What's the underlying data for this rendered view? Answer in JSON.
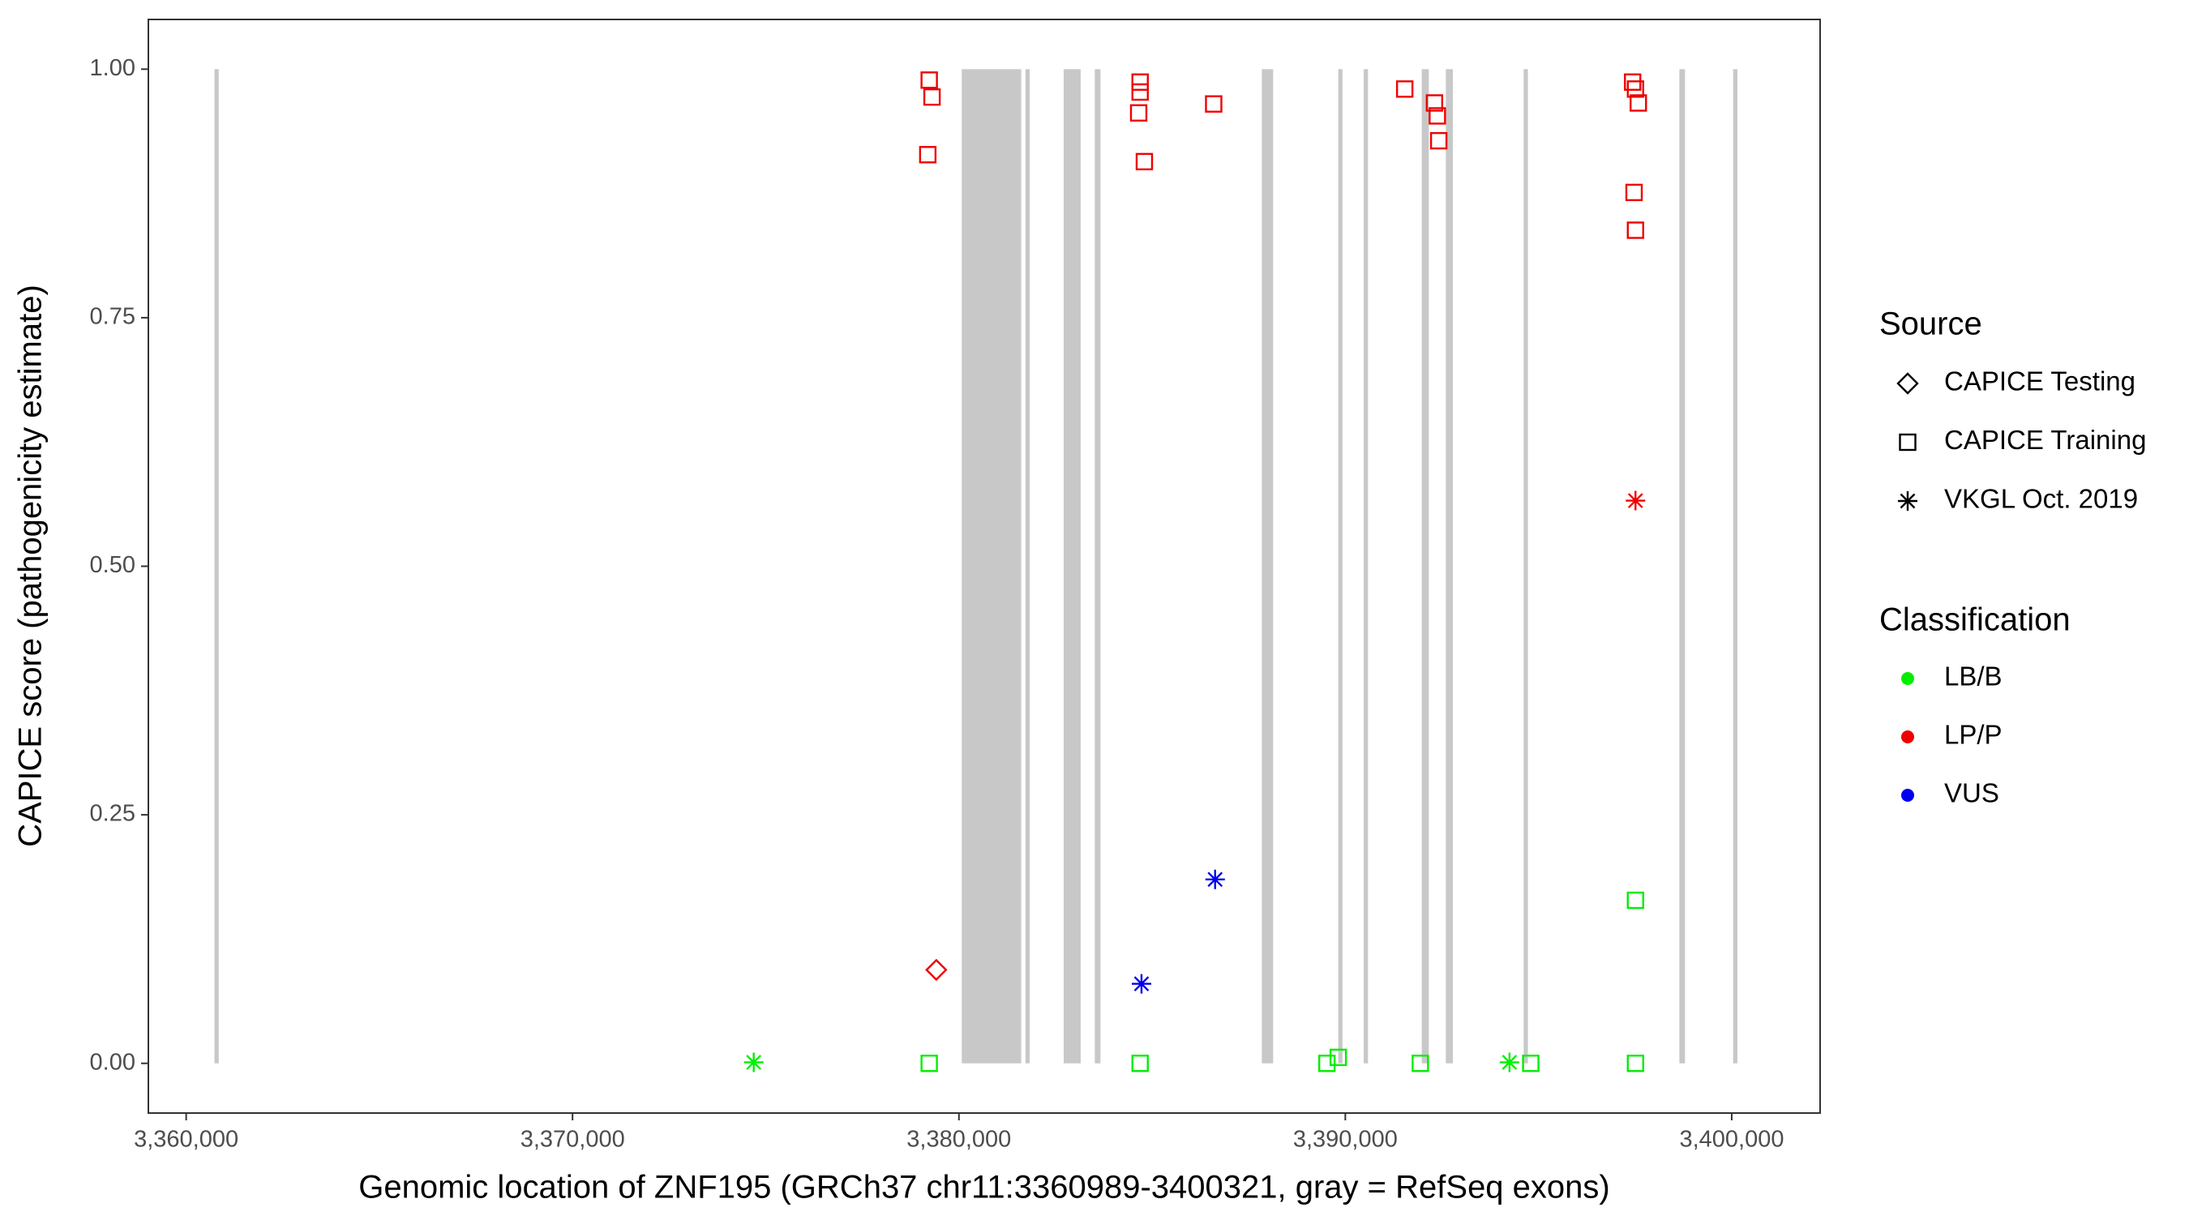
{
  "chart_data": {
    "type": "scatter",
    "x_label": "Genomic location of ZNF195 (GRCh37 chr11:3360989-3400321, gray = RefSeq exons)",
    "y_label": "CAPICE score (pathogenicity estimate)",
    "xlim": [
      3359022,
      3402288
    ],
    "ylim": [
      -0.05,
      1.05
    ],
    "xticks": [
      {
        "value": 3360000,
        "label": "3,360,000"
      },
      {
        "value": 3370000,
        "label": "3,370,000"
      },
      {
        "value": 3380000,
        "label": "3,380,000"
      },
      {
        "value": 3390000,
        "label": "3,390,000"
      },
      {
        "value": 3400000,
        "label": "3,400,000"
      }
    ],
    "yticks": [
      {
        "value": 0,
        "label": "0.00"
      },
      {
        "value": 0.25,
        "label": "0.25"
      },
      {
        "value": 0.5,
        "label": "0.50"
      },
      {
        "value": 0.75,
        "label": "0.75"
      },
      {
        "value": 1,
        "label": "1.00"
      }
    ],
    "exon_color": "#c8c8c8",
    "exon_yrange": [
      0,
      1
    ],
    "exons": [
      [
        3360733,
        3360843
      ],
      [
        3380073,
        3381612
      ],
      [
        3381722,
        3381832
      ],
      [
        3382711,
        3383150
      ],
      [
        3383516,
        3383663
      ],
      [
        3387839,
        3388132
      ],
      [
        3389817,
        3389927
      ],
      [
        3390476,
        3390586
      ],
      [
        3391978,
        3392161
      ],
      [
        3392601,
        3392784
      ],
      [
        3394615,
        3394725
      ],
      [
        3398645,
        3398791
      ],
      [
        3400037,
        3400147
      ]
    ],
    "source_title": "Source",
    "sources": [
      {
        "name": "CAPICE Testing",
        "shape": "diamond"
      },
      {
        "name": "CAPICE Training",
        "shape": "square"
      },
      {
        "name": "VKGL Oct. 2019",
        "shape": "asterisk"
      }
    ],
    "classification_title": "Classification",
    "classifications": [
      {
        "name": "LB/B",
        "color": "#00ee00"
      },
      {
        "name": "LP/P",
        "color": "#ee0000"
      },
      {
        "name": "VUS",
        "color": "#0000ee"
      }
    ],
    "x": [
      3379231,
      3379304,
      3379194,
      3384689,
      3384689,
      3384652,
      3384799,
      3386593,
      3391538,
      3392308,
      3392381,
      3392418,
      3397436,
      3397510,
      3397583,
      3397473,
      3397510,
      3379414,
      3397510,
      3386630,
      3384725,
      3374689,
      3394249,
      3379231,
      3384689,
      3389524,
      3389817,
      3391941,
      3394799,
      3397510,
      3397510
    ],
    "y": [
      0.989,
      0.972,
      0.914,
      0.987,
      0.977,
      0.956,
      0.907,
      0.965,
      0.98,
      0.966,
      0.953,
      0.928,
      0.987,
      0.98,
      0.966,
      0.876,
      0.838,
      0.094,
      0.566,
      0.185,
      0.08,
      0.001,
      0.001,
      0,
      0,
      0,
      0.006,
      0,
      0,
      0.164,
      0
    ],
    "source": [
      "CAPICE Training",
      "CAPICE Training",
      "CAPICE Training",
      "CAPICE Training",
      "CAPICE Training",
      "CAPICE Training",
      "CAPICE Training",
      "CAPICE Training",
      "CAPICE Training",
      "CAPICE Training",
      "CAPICE Training",
      "CAPICE Training",
      "CAPICE Training",
      "CAPICE Training",
      "CAPICE Training",
      "CAPICE Training",
      "CAPICE Training",
      "CAPICE Testing",
      "VKGL Oct. 2019",
      "VKGL Oct. 2019",
      "VKGL Oct. 2019",
      "VKGL Oct. 2019",
      "VKGL Oct. 2019",
      "CAPICE Training",
      "CAPICE Training",
      "CAPICE Training",
      "CAPICE Training",
      "CAPICE Training",
      "CAPICE Training",
      "CAPICE Training",
      "CAPICE Training"
    ],
    "classification": [
      "LP/P",
      "LP/P",
      "LP/P",
      "LP/P",
      "LP/P",
      "LP/P",
      "LP/P",
      "LP/P",
      "LP/P",
      "LP/P",
      "LP/P",
      "LP/P",
      "LP/P",
      "LP/P",
      "LP/P",
      "LP/P",
      "LP/P",
      "LP/P",
      "LP/P",
      "VUS",
      "VUS",
      "LB/B",
      "LB/B",
      "LB/B",
      "LB/B",
      "LB/B",
      "LB/B",
      "LB/B",
      "LB/B",
      "LB/B",
      "LB/B"
    ]
  }
}
